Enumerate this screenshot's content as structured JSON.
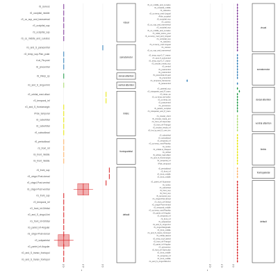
{
  "chart_data": [
    {
      "type": "forest",
      "title": "",
      "xlabel": "r",
      "ylabel": "",
      "xlim": [
        -0.8,
        0.15
      ],
      "xticks": [
        "-0.6",
        "-0.3",
        "0.0"
      ],
      "grid": true,
      "legend": "none",
      "groups": [
        {
          "name": "visual",
          "color": "#7b3294",
          "rows": [
            {
              "label": "rS_cuneus",
              "r": -0.6
            },
            {
              "label": "rS_occipital_middle",
              "r": -0.6
            },
            {
              "label": "rS_oc_sup_and_transversal",
              "r": -0.6
            },
            {
              "label": "rS_occipital_sup",
              "r": -0.6
            },
            {
              "label": "rS_occipital_sup",
              "r": -0.6
            },
            {
              "label": "rS_oc_middle_and_Lunatus",
              "r": -0.6
            }
          ]
        },
        {
          "name": "somatomotor",
          "color": "#2c7bb6",
          "rows": [
            {
              "label": "rG_and_S_paracentral",
              "r": 0.0
            },
            {
              "label": "rG_temp_sup-Plan_polar",
              "r": -0.6
            },
            {
              "label": "rLat_Fis-post",
              "r": -0.6
            },
            {
              "label": "rS_precentral",
              "r": -0.6
            }
          ]
        },
        {
          "name": "dorsal attention",
          "color": "#1a9641",
          "rows": [
            {
              "label": "rS_interp_sp",
              "r": -0.6
            }
          ]
        },
        {
          "name": "ventral attention",
          "color": "#a6d96a",
          "rows": [
            {
              "label": "rG_and_S_cingul-Ant",
              "r": -0.6
            }
          ]
        },
        {
          "name": "limbic",
          "color": "#e6e600",
          "rows": [
            {
              "label": "rS_orbital_med-olfact",
              "r": 0.05
            },
            {
              "label": "rS_temporal_inf",
              "r": 0.05
            },
            {
              "label": "rG_and_S_frontomargin",
              "r": -0.6
            },
            {
              "label": "rPole_temporal",
              "r": -0.6
            },
            {
              "label": "rS_suborbital",
              "r": -0.6
            },
            {
              "label": "rS_suborbital",
              "r": -0.6
            },
            {
              "label": "rS_subcallosal",
              "r": -0.6
            }
          ]
        },
        {
          "name": "frontoparietal",
          "color": "#fdae61",
          "rows": [
            {
              "label": "rS_pericallosal",
              "r": -0.6
            },
            {
              "label": "rS_front_inf",
              "r": -0.6
            },
            {
              "label": "rG_front_middle",
              "r": -0.6
            },
            {
              "label": "rG_front_middle",
              "r": -0.6
            }
          ]
        },
        {
          "name": "default",
          "color": "#d7191c",
          "rows": [
            {
              "label": "rS_front_sup",
              "r": 0.1
            },
            {
              "label": "rG_cingul-Post-dorsal",
              "r": 0.1
            },
            {
              "label": "rS_cingul-Post-ventral",
              "r": 0.05
            },
            {
              "label": "rS_cingul-Post-ventral",
              "r": -0.3,
              "box": true
            },
            {
              "label": "rG_front_sup",
              "r": -0.6
            },
            {
              "label": "rS_temporal_inf",
              "r": -0.6
            },
            {
              "label": "rG_front_inf-Orbital",
              "r": -0.6
            },
            {
              "label": "rG_and_S_cingul-Ant",
              "r": -0.6
            },
            {
              "label": "rG_front_inf-Orbital",
              "r": -0.6
            },
            {
              "label": "rG_pariet_inf-Angular",
              "r": -0.6
            },
            {
              "label": "rG_cingul-Post-dorsal",
              "r": -0.6
            },
            {
              "label": "rS_subparietal",
              "r": -0.6,
              "box": true
            },
            {
              "label": "rG_pariet_inf-Angular",
              "r": -0.6
            },
            {
              "label": "rG_and_S_transv_frontopol",
              "r": -0.6
            },
            {
              "label": "rG_and_S_transv_frontopol",
              "r": -0.6
            }
          ]
        }
      ]
    },
    {
      "type": "forest",
      "title": "",
      "xlabel": "r",
      "ylabel": "",
      "xlim": [
        -1.6,
        0.25
      ],
      "xticks": [
        "-0.6",
        "-0.3",
        "0.0"
      ],
      "grid": true,
      "legend": "none",
      "groups": [
        {
          "name": "visual",
          "color": "#7b3294",
          "rows": [
            {
              "label": "rS_oc_middle_and_Lunatus",
              "r": 0.1
            },
            {
              "label": "rG_occipital_middle",
              "r": 0.1
            },
            {
              "label": "rS_calcarine",
              "r": 0.1
            },
            {
              "label": "rG_oc-temp_med-Lingual",
              "r": 0.1
            },
            {
              "label": "rPole_occipital",
              "r": 0.1
            },
            {
              "label": "rS_occipital_sup",
              "r": 0.1
            },
            {
              "label": "rG_cuneus",
              "r": 0.1
            },
            {
              "label": "rS_oc_sup_and_transversal",
              "r": 0.1
            },
            {
              "label": "rG_occipital_sup",
              "r": 0.1
            },
            {
              "label": "rS_oc_middle_and_Lunatus",
              "r": 0.1
            },
            {
              "label": "rS_collat_transv_post",
              "r": 0.1
            },
            {
              "label": "rS_oc-temp_med_and_Lingual",
              "r": 0.1
            },
            {
              "label": "rG_occipital_sup",
              "r": 0.1
            },
            {
              "label": "rS_calcarine",
              "r": 0.1
            },
            {
              "label": "rS_oc-temp_med-Lingual",
              "r": 0.1
            },
            {
              "label": "rG_cuneus",
              "r": 0.1
            },
            {
              "label": "rS_oc_sup_and_transversal",
              "r": 0.1
            }
          ]
        },
        {
          "name": "somatomotor",
          "color": "#2c7bb6",
          "rows": [
            {
              "label": "rG_temp_sup-G_T_transv",
              "r": 0.1
            },
            {
              "label": "rG_and_S_subcentral",
              "r": 0.1
            },
            {
              "label": "rG_temp_sup-G_T_transv",
              "r": 0.1
            },
            {
              "label": "rS_circular_insula_sup",
              "r": 0.1
            },
            {
              "label": "rS_central",
              "r": 0.1
            },
            {
              "label": "rS_postcentral",
              "r": 0.1
            },
            {
              "label": "rG_postcentral",
              "r": 0.1
            },
            {
              "label": "rS_precentral-inf-part",
              "r": 0.1
            },
            {
              "label": "rG_precentral",
              "r": 0.1
            },
            {
              "label": "rG_temporal_transverse",
              "r": -1.2
            },
            {
              "label": "rS_paracentral",
              "r": 0.1
            }
          ]
        },
        {
          "name": "dorsal attention",
          "color": "#1a9641",
          "rows": [
            {
              "label": "rG_parietal_sup",
              "r": 0.1
            },
            {
              "label": "rG_intrapariet_and_P_trans",
              "r": 0.15
            },
            {
              "label": "rS_interp_sp",
              "r": 0.1
            },
            {
              "label": "rG_oc-temp_lat-fusifor",
              "r": 0.1
            },
            {
              "label": "rS_oc-temp_lat",
              "r": 0.1
            },
            {
              "label": "rS_postcentral",
              "r": 0.1
            },
            {
              "label": "rG_precuneus",
              "r": 0.1
            },
            {
              "label": "rS_parieto_occipital",
              "r": 0.1
            },
            {
              "label": "rS_intrapariet_and_P_trans",
              "r": 0.1
            }
          ]
        },
        {
          "name": "ventral attention",
          "color": "#a6d96a",
          "rows": [
            {
              "label": "rG_insular_short",
              "r": 0.1
            },
            {
              "label": "rS_circular_insula_ant",
              "r": 0.1
            },
            {
              "label": "rG_front_inf-Opercular",
              "r": 0.1
            },
            {
              "label": "rG_front_inf-Triangul",
              "r": 0.1
            },
            {
              "label": "rS_circular_insula_inf",
              "r": 0.1
            },
            {
              "label": "rG_Ins_lg_and_S_cent_ins",
              "r": 0.1
            }
          ]
        },
        {
          "name": "limbic",
          "color": "#e6e600",
          "rows": [
            {
              "label": "rS_suborbital",
              "r": 0.1
            },
            {
              "label": "rG_subcallosal",
              "r": 0.1
            },
            {
              "label": "rS_temporal_inf",
              "r": 0.1
            },
            {
              "label": "rG_oc-temp_med-Parahip",
              "r": 0.1
            },
            {
              "label": "rG_rectus",
              "r": 0.1
            },
            {
              "label": "rS_orbital-H_Shaped",
              "r": 0.1
            },
            {
              "label": "rG_orbital",
              "r": 0.1
            },
            {
              "label": "rS_orbital_med-olfact",
              "r": 0.1
            },
            {
              "label": "rG_and_S_frontomargin",
              "r": 0.1
            },
            {
              "label": "rG_temporal_inf",
              "r": 0.1
            },
            {
              "label": "rPole_temporal",
              "r": 0.1
            }
          ]
        },
        {
          "name": "frontoparietal",
          "color": "#fdae61",
          "rows": [
            {
              "label": "rS_pericallosal",
              "r": 0.1
            },
            {
              "label": "rS_front_inf",
              "r": 0.1
            },
            {
              "label": "rG_front_middle",
              "r": 0.1
            },
            {
              "label": "rS_front_middle",
              "r": 0.1
            }
          ]
        },
        {
          "name": "default",
          "color": "#d7191c",
          "rows": [
            {
              "label": "rG_pariet_inf-Supramar",
              "r": 0.1
            },
            {
              "label": "rG_rectus",
              "r": 0.1
            },
            {
              "label": "rS_suborbital",
              "r": 0.1
            },
            {
              "label": "rS_front_sup",
              "r": 0.1
            },
            {
              "label": "rG_front_sup",
              "r": 0.1
            },
            {
              "label": "rS_temporal_sup",
              "r": 0.1
            },
            {
              "label": "rG_cingul-Post-dorsal",
              "r": 0.1
            },
            {
              "label": "rG_front_inf-Orbital",
              "r": 0.1
            },
            {
              "label": "rG_cingul-Post-ventral",
              "r": 0.1
            },
            {
              "label": "rG_temporal_middle",
              "r": 0.1
            },
            {
              "label": "rG_oc-temp_med-Parahip",
              "r": 0.1
            },
            {
              "label": "rG_pariet_inf-Angular",
              "r": 0.1
            },
            {
              "label": "rS_temporal_inf",
              "r": 0.1
            },
            {
              "label": "rS_front_inf",
              "r": 0.1
            },
            {
              "label": "rS_subparietal",
              "r": 0.1
            },
            {
              "label": "rG_and_S_cingul-Ant",
              "r": 0.1
            },
            {
              "label": "rS_cingul-Marginalis",
              "r": 0.1
            },
            {
              "label": "rS_front_middle",
              "r": 0.1
            },
            {
              "label": "rG_and_S_transv_frontopol",
              "r": 0.1
            },
            {
              "label": "rS_orbital_lateral",
              "r": 0.1
            },
            {
              "label": "rG_temp_sup-Lateral",
              "r": 0.1
            },
            {
              "label": "rG_front_inf-Triangul",
              "r": 0.1
            },
            {
              "label": "rS_pariet_inf-Angular",
              "r": 0.1
            },
            {
              "label": "rG_precuneus",
              "r": 0.1
            },
            {
              "label": "rS_front_inf-Opercular",
              "r": 0.1
            },
            {
              "label": "rG_front_middle",
              "r": 0.1
            },
            {
              "label": "rS_temporal_inf",
              "r": 0.1
            },
            {
              "label": "rS_front_middle",
              "r": 0.1
            },
            {
              "label": "rG_and_S_cingul-Mid-Ant",
              "r": 0.1
            }
          ]
        }
      ]
    }
  ]
}
